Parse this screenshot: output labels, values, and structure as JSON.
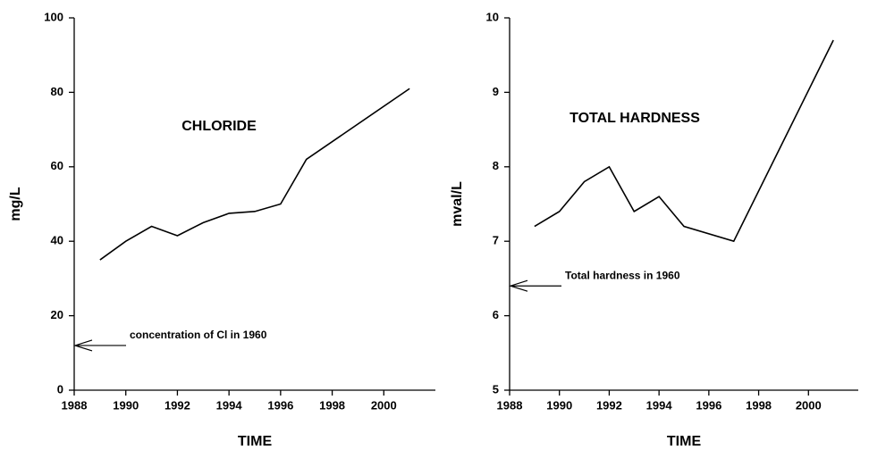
{
  "chart_data": [
    {
      "type": "line",
      "title": "CHLORIDE",
      "x_label": "TIME",
      "y_label": "mg/L",
      "x": [
        1989,
        1990,
        1991,
        1992,
        1993,
        1994,
        1995,
        1996,
        1997,
        2001
      ],
      "series": [
        {
          "color": "#000000",
          "values": [
            35,
            40,
            44,
            41.5,
            45,
            47.5,
            48,
            50,
            62,
            81
          ]
        }
      ],
      "xlim": [
        1988,
        2002
      ],
      "xticks": [
        1988,
        1990,
        1992,
        1994,
        1996,
        1998,
        2000
      ],
      "ylim": [
        0,
        100
      ],
      "yticks": [
        0,
        20,
        40,
        60,
        80,
        100
      ],
      "annotation": {
        "text": "concentration of Cl in 1960",
        "y": 12
      }
    },
    {
      "type": "line",
      "title": "TOTAL HARDNESS",
      "x_label": "TIME",
      "y_label": "mval/L",
      "x": [
        1989,
        1990,
        1991,
        1992,
        1993,
        1994,
        1995,
        1997,
        2001
      ],
      "series": [
        {
          "color": "#000000",
          "values": [
            7.2,
            7.4,
            7.8,
            8.0,
            7.4,
            7.6,
            7.2,
            7.0,
            9.7
          ]
        }
      ],
      "xlim": [
        1988,
        2002
      ],
      "xticks": [
        1988,
        1990,
        1992,
        1994,
        1996,
        1998,
        2000
      ],
      "ylim": [
        5,
        10
      ],
      "yticks": [
        5,
        6,
        7,
        8,
        9,
        10
      ],
      "annotation": {
        "text": "Total hardness in 1960",
        "y": 6.4
      }
    }
  ]
}
